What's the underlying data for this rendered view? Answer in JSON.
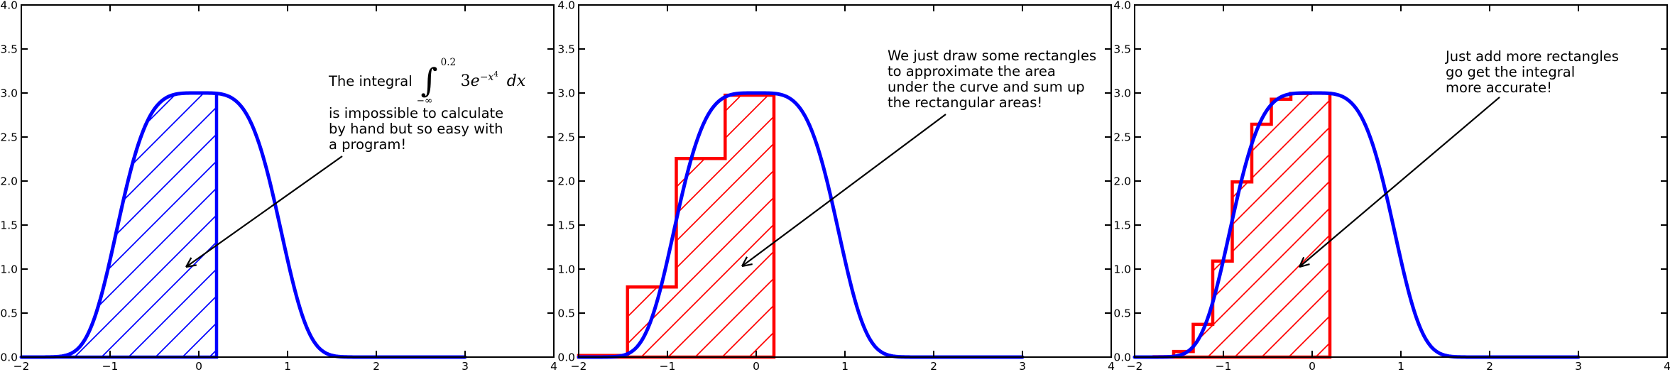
{
  "figure": {
    "background": "#ffffff"
  },
  "colors": {
    "curve": "#0000ff",
    "area_hatch": "#0000ff",
    "rect": "#ff0000",
    "axis": "#000000",
    "text": "#000000",
    "arrow": "#000000"
  },
  "axes": {
    "xlim": [
      -2,
      4
    ],
    "ylim": [
      0,
      4
    ],
    "xticks": [
      -2,
      -1,
      0,
      1,
      2,
      3,
      4
    ],
    "xtick_labels": [
      "−2",
      "−1",
      "0",
      "1",
      "2",
      "3",
      "4"
    ],
    "yticks": [
      0,
      0.5,
      1,
      1.5,
      2,
      2.5,
      3,
      3.5,
      4
    ],
    "ytick_labels": [
      "0.0",
      "0.5",
      "1.0",
      "1.5",
      "2.0",
      "2.5",
      "3.0",
      "3.5",
      "4.0"
    ],
    "grid": false
  },
  "chart_data": [
    {
      "type": "area",
      "panel": "left",
      "function": "y = 3*exp(-x^4)",
      "curve_x_range": [
        -2,
        3
      ],
      "curve_peak": 3.0,
      "fill": {
        "x_from": -2,
        "x_to": 0.2,
        "hatch": "/",
        "edge_color": "#0000ff"
      },
      "annotation": {
        "formula": {
          "prefix": "The integral",
          "integral_sign": "∫",
          "upper_limit": "0.2",
          "lower_limit": "−∞",
          "coefficient": "3",
          "base": "e",
          "exponent": "−x",
          "exponent_power": "4",
          "differential": "dx"
        },
        "lines": [
          "is impossible to calculate",
          "by hand but so easy with",
          "a program!"
        ],
        "text_pos": [
          1.464,
          3.371
        ],
        "arrow_start": [
          1.616,
          2.282
        ],
        "arrow_end": [
          -0.144,
          1.024
        ]
      }
    },
    {
      "type": "line+bars",
      "panel": "middle",
      "function": "y = 3*exp(-x^4)",
      "curve_x_range": [
        -2,
        3
      ],
      "rect_edges": [
        -2.0,
        -1.45,
        -0.9,
        -0.35,
        0.2
      ],
      "rect_heights": [
        0.018,
        0.796,
        2.256,
        2.975
      ],
      "rect_hatch": "/",
      "annotation": {
        "lines": [
          "We just draw some rectangles",
          "to approximate the area",
          "under the curve and sum up",
          "the rectangular areas!"
        ],
        "text_pos": [
          1.48,
          3.508
        ],
        "arrow_start": [
          2.136,
          2.758
        ],
        "arrow_end": [
          -0.16,
          1.032
        ]
      }
    },
    {
      "type": "line+bars",
      "panel": "right",
      "function": "y = 3*exp(-x^4)",
      "curve_x_range": [
        -2,
        3
      ],
      "rect_edges": [
        -2.0,
        -1.78,
        -1.56,
        -1.34,
        -1.12,
        -0.9,
        -0.68,
        -0.46,
        -0.24,
        -0.02,
        0.2
      ],
      "rect_heights": [
        0.0,
        0.004,
        0.064,
        0.372,
        1.09,
        1.99,
        2.645,
        2.93,
        2.995,
        2.997
      ],
      "rect_hatch": "/",
      "annotation": {
        "lines": [
          "Just add more rectangles",
          "go get the integral",
          "more accurate!"
        ],
        "text_pos": [
          1.504,
          3.5
        ],
        "arrow_start": [
          2.112,
          2.952
        ],
        "arrow_end": [
          -0.144,
          1.024
        ]
      }
    }
  ]
}
